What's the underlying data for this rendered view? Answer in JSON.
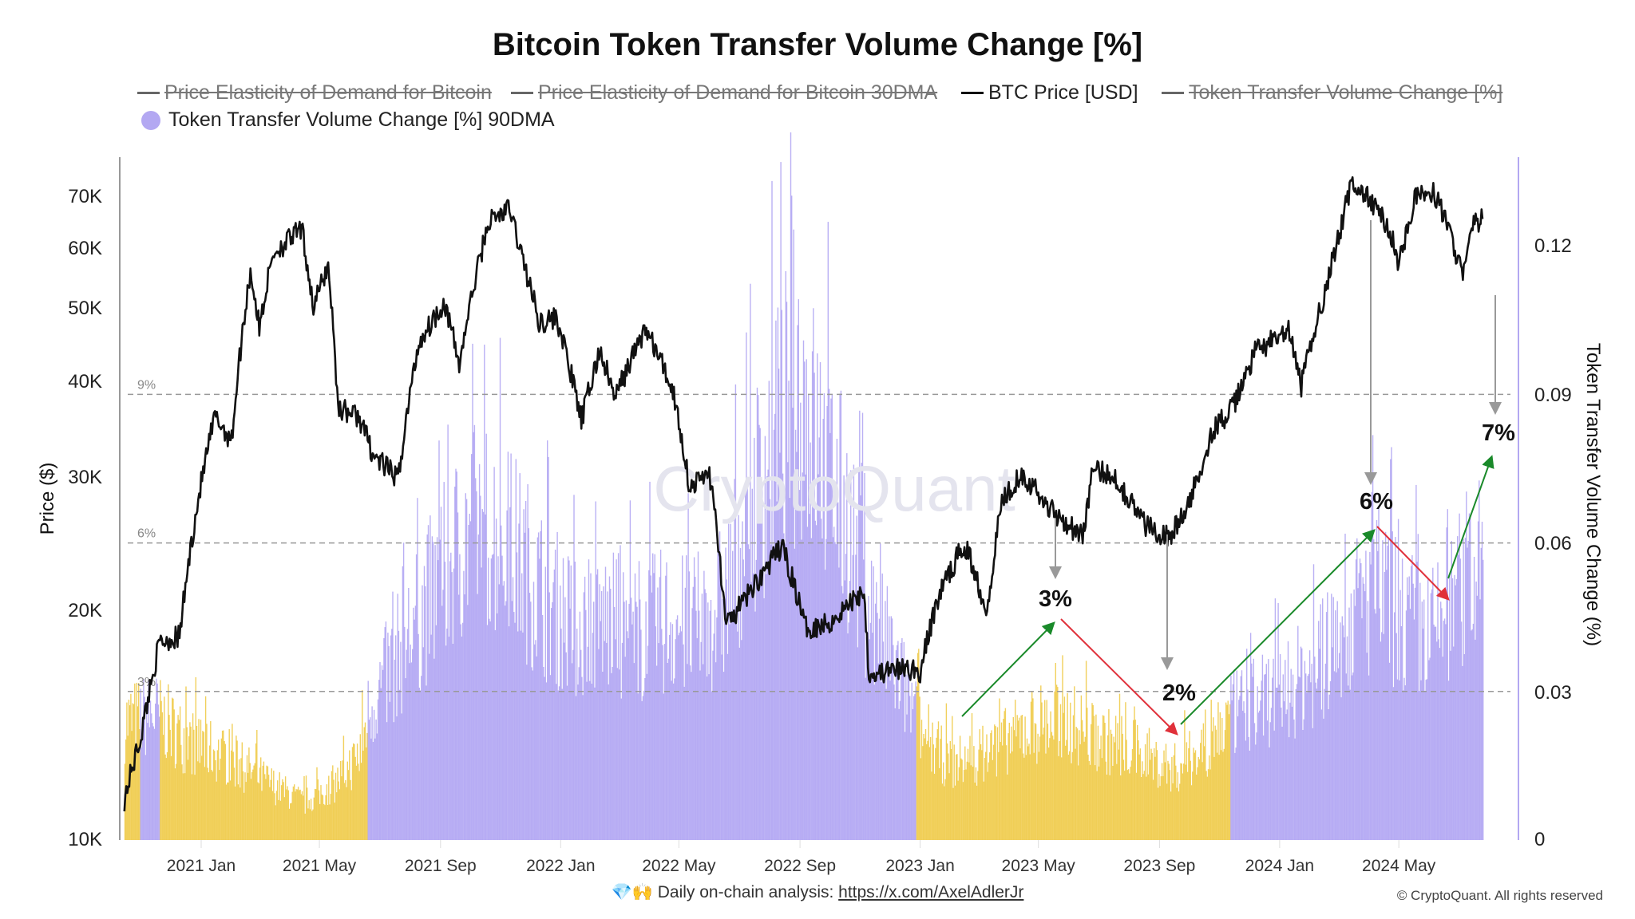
{
  "title": "Bitcoin Token Transfer Volume Change [%]",
  "legend": [
    {
      "label": "Price Elasticity of Demand for Bitcoin",
      "state": "off"
    },
    {
      "label": "Price Elasticity of Demand for Bitcoin 30DMA",
      "state": "off"
    },
    {
      "label": "BTC Price [USD]",
      "state": "on"
    },
    {
      "label": "Token Transfer Volume Change [%]",
      "state": "off"
    },
    {
      "label": "Token Transfer Volume Change [%] 90DMA",
      "state": "on"
    }
  ],
  "watermark": "CryptoQuant",
  "footer": {
    "icons": "💎🙌",
    "text": "Daily on-chain analysis: ",
    "link": "https://x.com/AxelAdlerJr",
    "copyright": "© CryptoQuant. All rights reserved"
  },
  "colors": {
    "price": "#111111",
    "bar_high": "#9d8ff0",
    "bar_low": "#efc83f",
    "up_arrow": "#1a8a2a",
    "down_arrow": "#e0303a",
    "guide": "#999999"
  },
  "chart_data": {
    "type": "bar+line",
    "title": "Bitcoin Token Transfer Volume Change [%]",
    "ylabel_left": "Price ($)",
    "ylabel_right": "Token Transfer Volume Change (%)",
    "left_axis": {
      "scale": "log",
      "range": [
        10000,
        80000
      ],
      "ticks": [
        "70K",
        "60K",
        "50K",
        "40K",
        "30K",
        "20K",
        "10K"
      ],
      "tick_values": [
        70000,
        60000,
        50000,
        40000,
        30000,
        20000,
        10000
      ]
    },
    "right_axis": {
      "range": [
        0,
        0.1325
      ],
      "ticks": [
        "0.12",
        "0.09",
        "0.06",
        "0.03",
        "0"
      ],
      "tick_values": [
        0.12,
        0.09,
        0.06,
        0.03,
        0
      ]
    },
    "x_ticks": [
      "2021 Jan",
      "2021 May",
      "2021 Sep",
      "2022 Jan",
      "2022 May",
      "2022 Sep",
      "2023 Jan",
      "2023 May",
      "2023 Sep",
      "2024 Jan",
      "2024 May"
    ],
    "x_tick_dates": [
      "2021-01-01",
      "2021-05-01",
      "2021-09-01",
      "2022-01-01",
      "2022-05-01",
      "2022-09-01",
      "2023-01-01",
      "2023-05-01",
      "2023-09-01",
      "2024-01-01",
      "2024-05-01"
    ],
    "reference_lines": [
      {
        "label": "9%",
        "value": 0.09
      },
      {
        "label": "6%",
        "value": 0.06
      },
      {
        "label": "3%",
        "value": 0.03
      }
    ],
    "low_threshold": 0.029,
    "btc_price": [
      [
        "2020-10-15",
        11300
      ],
      [
        "2020-11-01",
        13700
      ],
      [
        "2020-11-20",
        18200
      ],
      [
        "2020-12-10",
        18500
      ],
      [
        "2020-12-31",
        29000
      ],
      [
        "2021-01-15",
        36000
      ],
      [
        "2021-02-01",
        33500
      ],
      [
        "2021-02-20",
        56000
      ],
      [
        "2021-03-01",
        47000
      ],
      [
        "2021-03-15",
        59000
      ],
      [
        "2021-04-13",
        63500
      ],
      [
        "2021-04-25",
        50000
      ],
      [
        "2021-05-10",
        57000
      ],
      [
        "2021-05-20",
        37000
      ],
      [
        "2021-06-10",
        36000
      ],
      [
        "2021-06-25",
        32000
      ],
      [
        "2021-07-20",
        29800
      ],
      [
        "2021-08-10",
        45000
      ],
      [
        "2021-09-05",
        51000
      ],
      [
        "2021-09-20",
        42000
      ],
      [
        "2021-10-20",
        65000
      ],
      [
        "2021-11-10",
        67500
      ],
      [
        "2021-11-25",
        57000
      ],
      [
        "2021-12-10",
        48000
      ],
      [
        "2021-12-28",
        48500
      ],
      [
        "2022-01-22",
        35500
      ],
      [
        "2022-02-10",
        44000
      ],
      [
        "2022-02-25",
        38000
      ],
      [
        "2022-03-28",
        47000
      ],
      [
        "2022-04-25",
        39000
      ],
      [
        "2022-05-12",
        29000
      ],
      [
        "2022-06-01",
        30500
      ],
      [
        "2022-06-18",
        19000
      ],
      [
        "2022-07-10",
        21000
      ],
      [
        "2022-08-14",
        24300
      ],
      [
        "2022-09-07",
        19000
      ],
      [
        "2022-10-01",
        19300
      ],
      [
        "2022-11-05",
        21300
      ],
      [
        "2022-11-10",
        16500
      ],
      [
        "2022-12-20",
        16800
      ],
      [
        "2023-01-01",
        16600
      ],
      [
        "2023-01-20",
        21000
      ],
      [
        "2023-02-15",
        24500
      ],
      [
        "2023-03-10",
        20000
      ],
      [
        "2023-03-25",
        28000
      ],
      [
        "2023-04-14",
        30400
      ],
      [
        "2023-05-10",
        27500
      ],
      [
        "2023-06-15",
        25000
      ],
      [
        "2023-06-25",
        30500
      ],
      [
        "2023-07-15",
        30300
      ],
      [
        "2023-08-17",
        26000
      ],
      [
        "2023-09-11",
        25000
      ],
      [
        "2023-10-01",
        27500
      ],
      [
        "2023-10-25",
        34500
      ],
      [
        "2023-11-15",
        37000
      ],
      [
        "2023-12-08",
        44000
      ],
      [
        "2024-01-10",
        46500
      ],
      [
        "2024-01-23",
        39500
      ],
      [
        "2024-02-15",
        52000
      ],
      [
        "2024-03-01",
        62000
      ],
      [
        "2024-03-14",
        73000
      ],
      [
        "2024-04-01",
        69500
      ],
      [
        "2024-04-20",
        64000
      ],
      [
        "2024-05-01",
        57500
      ],
      [
        "2024-05-20",
        71000
      ],
      [
        "2024-06-07",
        70500
      ],
      [
        "2024-06-25",
        61000
      ],
      [
        "2024-07-05",
        55000
      ],
      [
        "2024-07-15",
        64000
      ],
      [
        "2024-07-25",
        65500
      ]
    ],
    "token_transfer_volume_change_90dma": [
      [
        "2020-10-15",
        0.028
      ],
      [
        "2020-11-15",
        0.03
      ],
      [
        "2020-12-15",
        0.024
      ],
      [
        "2021-01-15",
        0.021
      ],
      [
        "2021-02-15",
        0.017
      ],
      [
        "2021-03-15",
        0.013
      ],
      [
        "2021-04-15",
        0.009
      ],
      [
        "2021-05-15",
        0.013
      ],
      [
        "2021-06-10",
        0.02
      ],
      [
        "2021-06-20",
        0.031
      ],
      [
        "2021-07-15",
        0.042
      ],
      [
        "2021-08-15",
        0.055
      ],
      [
        "2021-09-15",
        0.068
      ],
      [
        "2021-10-10",
        0.076
      ],
      [
        "2021-11-10",
        0.07
      ],
      [
        "2021-12-15",
        0.058
      ],
      [
        "2022-01-15",
        0.05
      ],
      [
        "2022-02-15",
        0.052
      ],
      [
        "2022-03-15",
        0.048
      ],
      [
        "2022-04-15",
        0.052
      ],
      [
        "2022-05-15",
        0.05
      ],
      [
        "2022-06-15",
        0.056
      ],
      [
        "2022-07-15",
        0.08
      ],
      [
        "2022-08-15",
        0.1
      ],
      [
        "2022-09-01",
        0.108
      ],
      [
        "2022-09-20",
        0.092
      ],
      [
        "2022-10-15",
        0.078
      ],
      [
        "2022-11-15",
        0.052
      ],
      [
        "2022-12-15",
        0.036
      ],
      [
        "2023-01-05",
        0.024
      ],
      [
        "2023-02-01",
        0.018
      ],
      [
        "2023-03-01",
        0.02
      ],
      [
        "2023-04-01",
        0.024
      ],
      [
        "2023-05-01",
        0.028
      ],
      [
        "2023-06-01",
        0.028
      ],
      [
        "2023-07-01",
        0.024
      ],
      [
        "2023-08-01",
        0.022
      ],
      [
        "2023-09-01",
        0.018
      ],
      [
        "2023-09-20",
        0.017
      ],
      [
        "2023-10-15",
        0.022
      ],
      [
        "2023-11-15",
        0.03
      ],
      [
        "2023-12-15",
        0.033
      ],
      [
        "2024-01-15",
        0.037
      ],
      [
        "2024-02-15",
        0.043
      ],
      [
        "2024-03-15",
        0.054
      ],
      [
        "2024-04-10",
        0.059
      ],
      [
        "2024-05-01",
        0.053
      ],
      [
        "2024-06-01",
        0.048
      ],
      [
        "2024-07-01",
        0.056
      ],
      [
        "2024-07-25",
        0.065
      ]
    ],
    "annotations": [
      {
        "label": "3%",
        "type": "value"
      },
      {
        "label": "2%",
        "type": "value"
      },
      {
        "label": "6%",
        "type": "value"
      },
      {
        "label": "7%",
        "type": "value"
      }
    ]
  }
}
